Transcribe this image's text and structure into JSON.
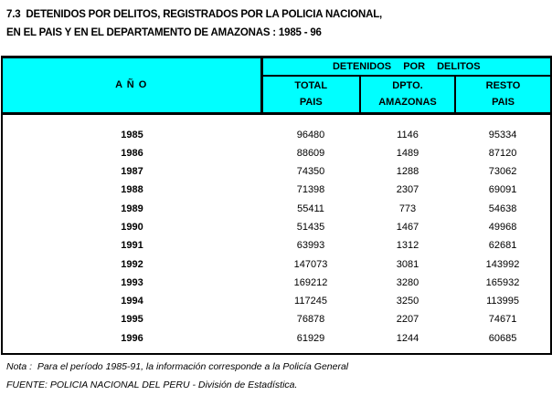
{
  "title": {
    "line1": "7.3  DETENIDOS POR DELITOS, REGISTRADOS POR LA POLICIA NACIONAL,",
    "line2": "EN EL PAIS Y EN EL DEPARTAMENTO DE AMAZONAS : 1985 - 96"
  },
  "table": {
    "year_header": "A Ñ O",
    "group_header": "DETENIDOS POR DELITOS",
    "columns": [
      {
        "line1": "TOTAL",
        "line2": "PAIS"
      },
      {
        "line1": "DPTO.",
        "line2": "AMAZONAS"
      },
      {
        "line1": "RESTO",
        "line2": "PAIS"
      }
    ],
    "rows": [
      {
        "year": "1985",
        "total": "96480",
        "amazonas": "1146",
        "resto": "95334"
      },
      {
        "year": "1986",
        "total": "88609",
        "amazonas": "1489",
        "resto": "87120"
      },
      {
        "year": "1987",
        "total": "74350",
        "amazonas": "1288",
        "resto": "73062"
      },
      {
        "year": "1988",
        "total": "71398",
        "amazonas": "2307",
        "resto": "69091"
      },
      {
        "year": "1989",
        "total": "55411",
        "amazonas": "773",
        "resto": "54638"
      },
      {
        "year": "1990",
        "total": "51435",
        "amazonas": "1467",
        "resto": "49968"
      },
      {
        "year": "1991",
        "total": "63993",
        "amazonas": "1312",
        "resto": "62681"
      },
      {
        "year": "1992",
        "total": "147073",
        "amazonas": "3081",
        "resto": "143992"
      },
      {
        "year": "1993",
        "total": "169212",
        "amazonas": "3280",
        "resto": "165932"
      },
      {
        "year": "1994",
        "total": "117245",
        "amazonas": "3250",
        "resto": "113995"
      },
      {
        "year": "1995",
        "total": "76878",
        "amazonas": "2207",
        "resto": "74671"
      },
      {
        "year": "1996",
        "total": "61929",
        "amazonas": "1244",
        "resto": "60685"
      }
    ]
  },
  "footer": {
    "note": "Nota :  Para el período 1985-91, la información corresponde a la Policía General",
    "source": "FUENTE: POLICIA NACIONAL DEL PERU - División de Estadística."
  },
  "colors": {
    "header_bg": "#00FFFF",
    "border": "#000000",
    "text": "#000000"
  }
}
